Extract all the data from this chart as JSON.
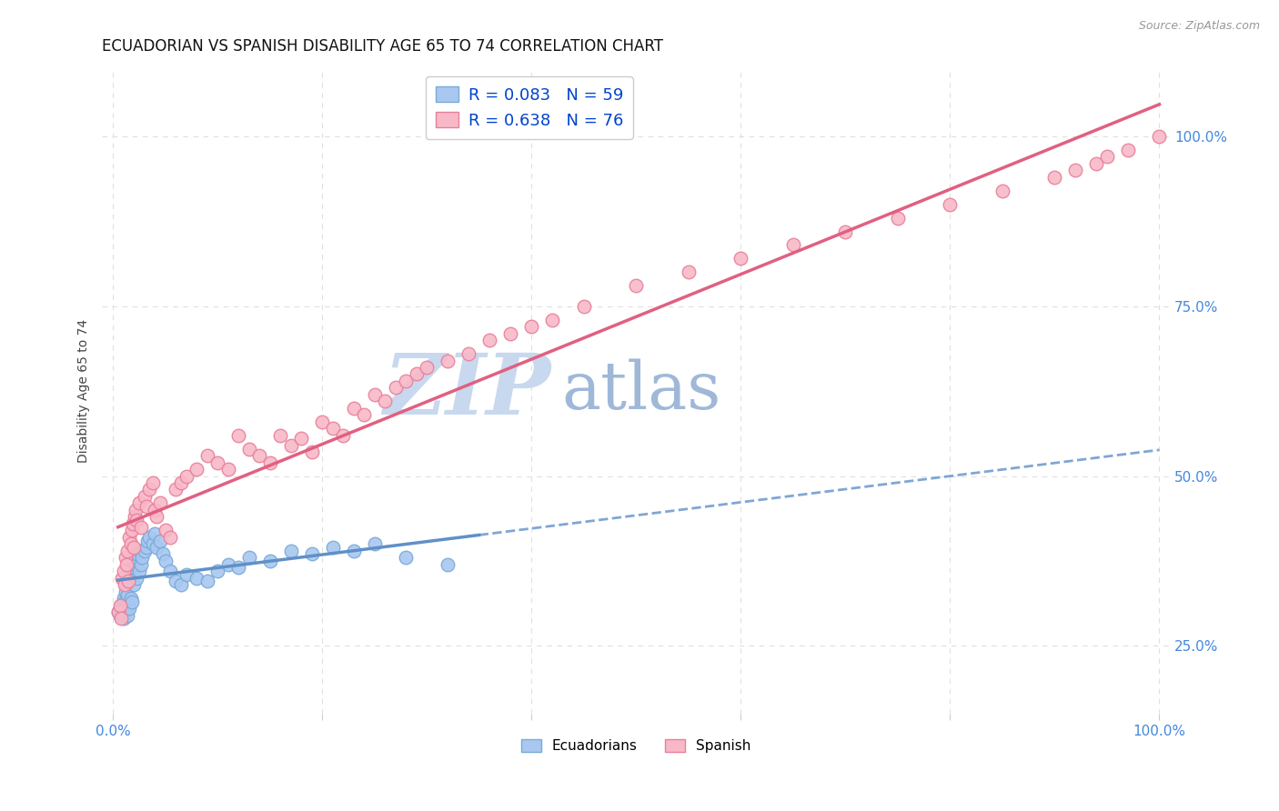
{
  "title": "ECUADORIAN VS SPANISH DISABILITY AGE 65 TO 74 CORRELATION CHART",
  "source": "Source: ZipAtlas.com",
  "ylabel": "Disability Age 65 to 74",
  "ecuadorian_R": 0.083,
  "ecuadorian_N": 59,
  "spanish_R": 0.638,
  "spanish_N": 76,
  "ecuadorian_color": "#a8c8f0",
  "ecuadorian_edge": "#7aaad8",
  "spanish_color": "#f8b8c8",
  "spanish_edge": "#e8809a",
  "ecuadorian_line_color": "#6090c8",
  "spanish_line_color": "#e06080",
  "legend_R_color": "#0044cc",
  "watermark_zip_color": "#c8d8ee",
  "watermark_atlas_color": "#a0b8d8",
  "background_color": "#ffffff",
  "grid_color": "#e0e0e0",
  "title_fontsize": 12,
  "axis_label_fontsize": 10,
  "tick_fontsize": 11,
  "ecu_x": [
    0.005,
    0.007,
    0.008,
    0.009,
    0.01,
    0.01,
    0.011,
    0.012,
    0.012,
    0.013,
    0.014,
    0.014,
    0.015,
    0.015,
    0.016,
    0.016,
    0.017,
    0.017,
    0.018,
    0.018,
    0.019,
    0.02,
    0.02,
    0.021,
    0.022,
    0.023,
    0.023,
    0.025,
    0.026,
    0.027,
    0.028,
    0.03,
    0.032,
    0.033,
    0.035,
    0.038,
    0.04,
    0.042,
    0.045,
    0.048,
    0.05,
    0.055,
    0.06,
    0.065,
    0.07,
    0.08,
    0.09,
    0.1,
    0.11,
    0.12,
    0.13,
    0.15,
    0.17,
    0.19,
    0.21,
    0.23,
    0.25,
    0.28,
    0.32
  ],
  "ecu_y": [
    0.3,
    0.295,
    0.31,
    0.305,
    0.32,
    0.29,
    0.315,
    0.33,
    0.308,
    0.34,
    0.325,
    0.295,
    0.345,
    0.31,
    0.35,
    0.305,
    0.36,
    0.32,
    0.355,
    0.315,
    0.365,
    0.375,
    0.34,
    0.38,
    0.37,
    0.385,
    0.35,
    0.36,
    0.39,
    0.37,
    0.38,
    0.39,
    0.395,
    0.405,
    0.41,
    0.4,
    0.415,
    0.395,
    0.405,
    0.385,
    0.375,
    0.36,
    0.345,
    0.34,
    0.355,
    0.35,
    0.345,
    0.36,
    0.37,
    0.365,
    0.38,
    0.375,
    0.39,
    0.385,
    0.395,
    0.39,
    0.4,
    0.38,
    0.37
  ],
  "spa_x": [
    0.005,
    0.007,
    0.008,
    0.009,
    0.01,
    0.011,
    0.012,
    0.013,
    0.014,
    0.015,
    0.016,
    0.017,
    0.018,
    0.019,
    0.02,
    0.021,
    0.022,
    0.023,
    0.025,
    0.027,
    0.03,
    0.032,
    0.035,
    0.038,
    0.04,
    0.042,
    0.045,
    0.05,
    0.055,
    0.06,
    0.065,
    0.07,
    0.08,
    0.09,
    0.1,
    0.11,
    0.12,
    0.13,
    0.14,
    0.15,
    0.16,
    0.17,
    0.18,
    0.19,
    0.2,
    0.21,
    0.22,
    0.23,
    0.24,
    0.25,
    0.26,
    0.27,
    0.28,
    0.29,
    0.3,
    0.32,
    0.34,
    0.36,
    0.38,
    0.4,
    0.42,
    0.45,
    0.5,
    0.55,
    0.6,
    0.65,
    0.7,
    0.75,
    0.8,
    0.85,
    0.9,
    0.92,
    0.94,
    0.95,
    0.97,
    1.0
  ],
  "spa_y": [
    0.3,
    0.31,
    0.29,
    0.35,
    0.36,
    0.34,
    0.38,
    0.37,
    0.39,
    0.345,
    0.41,
    0.4,
    0.42,
    0.43,
    0.395,
    0.44,
    0.45,
    0.435,
    0.46,
    0.425,
    0.47,
    0.455,
    0.48,
    0.49,
    0.45,
    0.44,
    0.46,
    0.42,
    0.41,
    0.48,
    0.49,
    0.5,
    0.51,
    0.53,
    0.52,
    0.51,
    0.56,
    0.54,
    0.53,
    0.52,
    0.56,
    0.545,
    0.555,
    0.535,
    0.58,
    0.57,
    0.56,
    0.6,
    0.59,
    0.62,
    0.61,
    0.63,
    0.64,
    0.65,
    0.66,
    0.67,
    0.68,
    0.7,
    0.71,
    0.72,
    0.73,
    0.75,
    0.78,
    0.8,
    0.82,
    0.84,
    0.86,
    0.88,
    0.9,
    0.92,
    0.94,
    0.95,
    0.96,
    0.97,
    0.98,
    1.0
  ],
  "xlim": [
    -0.01,
    1.01
  ],
  "ylim": [
    0.15,
    1.1
  ],
  "right_ytick_vals": [
    0.25,
    0.5,
    0.75,
    1.0
  ],
  "right_yticklabels": [
    "25.0%",
    "50.0%",
    "75.0%",
    "100.0%"
  ],
  "xtick_vals": [
    0.0,
    0.2,
    0.4,
    0.6,
    0.8,
    1.0
  ],
  "xticklabels": [
    "0.0%",
    "",
    "",
    "",
    "",
    "100.0%"
  ]
}
